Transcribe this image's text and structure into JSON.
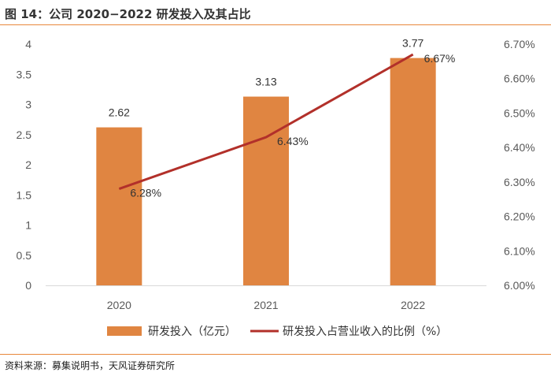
{
  "figure": {
    "title": "图 14：公司 2020−2022 研发投入及其占比",
    "source": "资料来源：募集说明书，天风证券研究所"
  },
  "colors": {
    "bar": "#e08541",
    "line": "#b2302a",
    "accent_rule": "#e8883c",
    "axis": "#d9d9d9",
    "tick_text": "#595959"
  },
  "chart_data": {
    "type": "bar",
    "title": "公司 2020−2022 研发投入及其占比",
    "categories": [
      "2020",
      "2021",
      "2022"
    ],
    "series": [
      {
        "name": "研发投入（亿元）",
        "type": "bar",
        "axis": "left",
        "values": [
          2.62,
          3.13,
          3.77
        ],
        "labels": [
          "2.62",
          "3.13",
          "3.77"
        ]
      },
      {
        "name": "研发投入占营业收入的比例（%）",
        "type": "line",
        "axis": "right",
        "values": [
          6.28,
          6.43,
          6.67
        ],
        "labels": [
          "6.28%",
          "6.43%",
          "6.67%"
        ]
      }
    ],
    "y_left": {
      "min": 0,
      "max": 4,
      "ticks": [
        "0",
        "0.5",
        "1",
        "1.5",
        "2",
        "2.5",
        "3",
        "3.5",
        "4"
      ]
    },
    "y_right": {
      "min": 6.0,
      "max": 6.7,
      "ticks": [
        "6.00%",
        "6.10%",
        "6.20%",
        "6.30%",
        "6.40%",
        "6.50%",
        "6.60%",
        "6.70%"
      ]
    },
    "grid": false,
    "legend": "bottom"
  }
}
